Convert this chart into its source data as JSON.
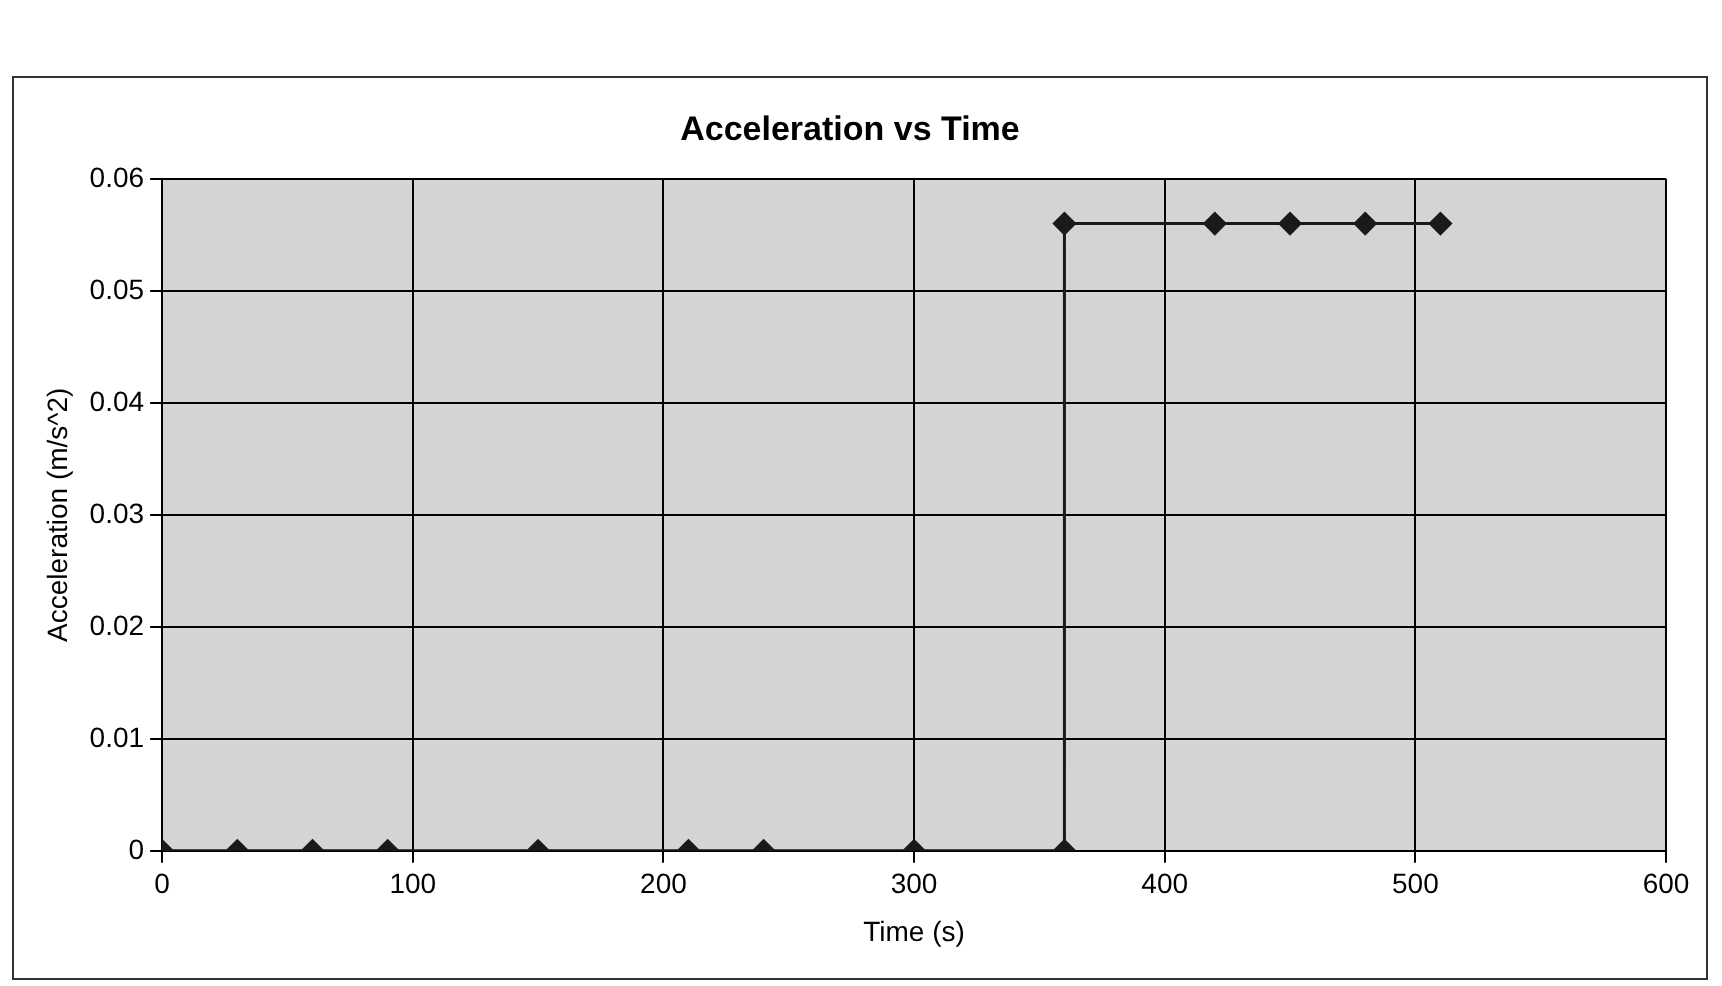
{
  "chart_data": {
    "type": "line",
    "title": "Acceleration vs Time",
    "xlabel": "Time (s)",
    "ylabel": "Acceleration (m/s^2)",
    "x": [
      0,
      30,
      60,
      90,
      150,
      210,
      240,
      300,
      360,
      360,
      420,
      450,
      480,
      510
    ],
    "series": [
      {
        "color": "#1a1a1a",
        "values": [
          0,
          0,
          0,
          0,
          0,
          0,
          0,
          0,
          0,
          0.056,
          0.056,
          0.056,
          0.056,
          0.056
        ]
      }
    ],
    "xlim": [
      0,
      600
    ],
    "xticks": [
      0,
      100,
      200,
      300,
      400,
      500,
      600
    ],
    "ylim": [
      0,
      0.06
    ],
    "yticks": [
      0,
      0.01,
      0.02,
      0.03,
      0.04,
      0.05,
      0.06
    ],
    "grid": true,
    "legend": false,
    "marker": "diamond",
    "line_style": "solid"
  }
}
